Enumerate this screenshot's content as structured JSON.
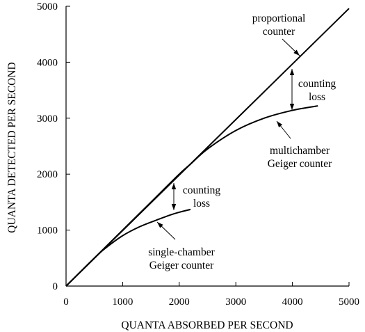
{
  "chart_data": {
    "type": "line",
    "xlabel": "QUANTA ABSORBED PER SECOND",
    "ylabel": "QUANTA DETECTED PER SECOND",
    "xlim": [
      0,
      5000
    ],
    "ylim": [
      0,
      5000
    ],
    "xticks": [
      0,
      1000,
      2000,
      3000,
      4000,
      5000
    ],
    "yticks": [
      0,
      1000,
      2000,
      3000,
      4000,
      5000
    ],
    "grid": false,
    "series": [
      {
        "name": "proportional counter",
        "x": [
          0,
          5000
        ],
        "y": [
          0,
          4960
        ]
      },
      {
        "name": "multichamber Geiger counter",
        "x": [
          0,
          1000,
          1500,
          2000,
          2200,
          2500,
          3000,
          3500,
          4000,
          4450
        ],
        "y": [
          0,
          1000,
          1500,
          2000,
          2180,
          2450,
          2780,
          3000,
          3140,
          3220
        ]
      },
      {
        "name": "single-chamber Geiger counter",
        "x": [
          0,
          500,
          700,
          1000,
          1300,
          1600,
          1900,
          2200
        ],
        "y": [
          0,
          500,
          680,
          900,
          1060,
          1180,
          1290,
          1370
        ]
      }
    ],
    "annotations": [
      {
        "label_lines": [
          "proportional",
          "counter"
        ]
      },
      {
        "label_lines": [
          "counting",
          "loss"
        ]
      },
      {
        "label_lines": [
          "multichamber",
          "Geiger counter"
        ]
      },
      {
        "label_lines": [
          "counting",
          "loss"
        ]
      },
      {
        "label_lines": [
          "single-chamber",
          "Geiger counter"
        ]
      }
    ]
  }
}
